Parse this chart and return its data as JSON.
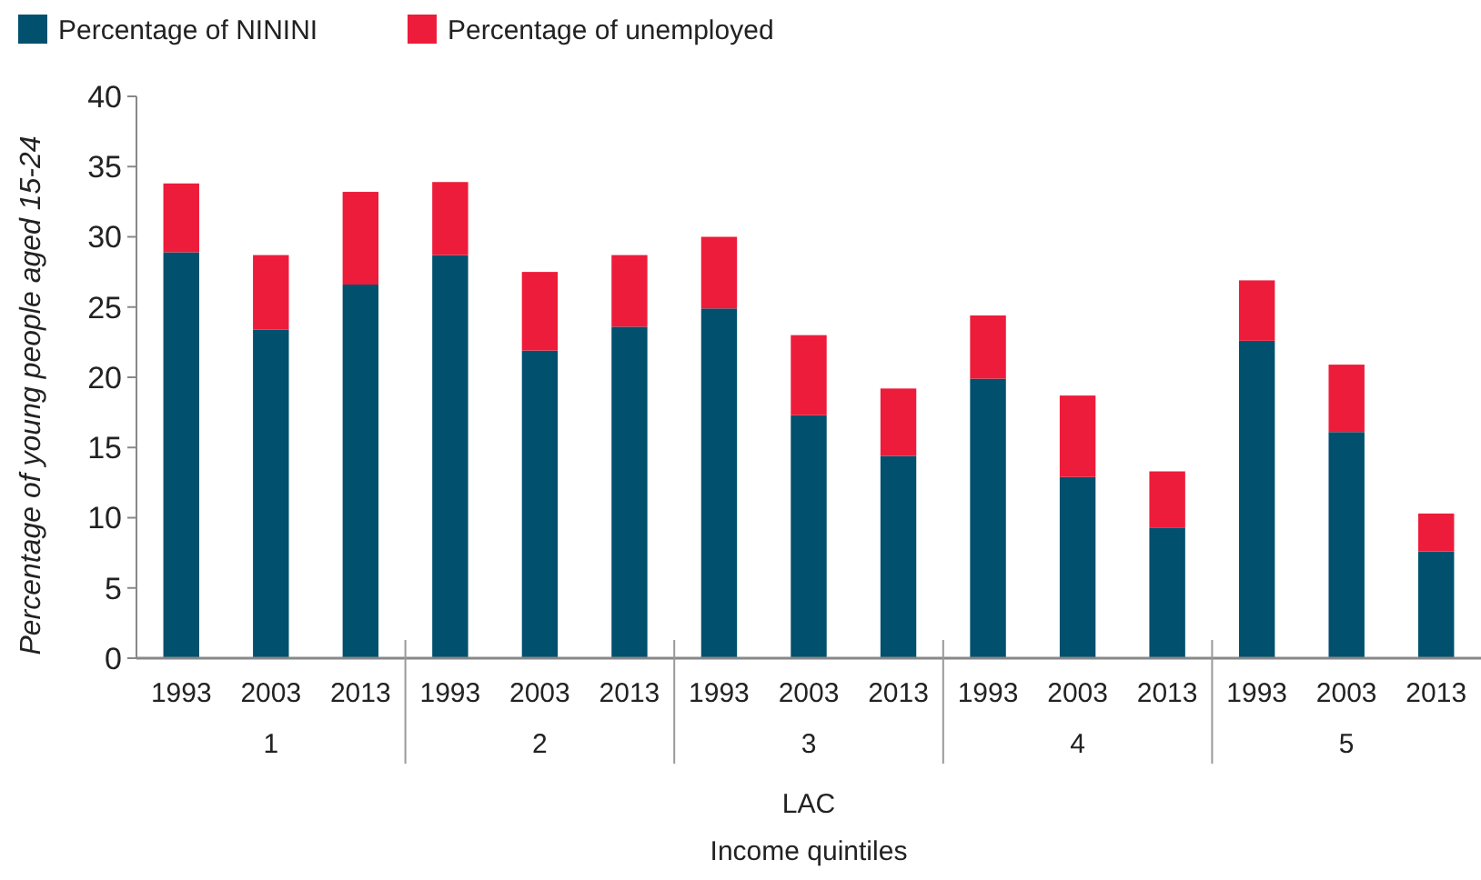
{
  "chart_data": {
    "type": "bar",
    "stacked": true,
    "ylabel": "Percentage of young  people aged 15-24",
    "xlabel": "Income quintiles",
    "categories": [
      "1993",
      "2003",
      "2013",
      "1993",
      "2003",
      "2013",
      "1993",
      "2003",
      "2013",
      "1993",
      "2003",
      "2013",
      "1993",
      "2003",
      "2013"
    ],
    "series": [
      {
        "name": "Percentage of NININI",
        "color": "#00506e",
        "values": [
          28.9,
          23.4,
          26.6,
          28.7,
          21.9,
          23.6,
          24.9,
          17.3,
          14.4,
          19.9,
          12.9,
          9.3,
          22.6,
          16.1,
          7.6
        ]
      },
      {
        "name": "Percentage of unemployed",
        "color": "#ed1c3a",
        "values": [
          4.9,
          5.3,
          6.6,
          5.2,
          5.6,
          5.1,
          5.1,
          5.7,
          4.8,
          4.5,
          5.8,
          4.0,
          4.3,
          4.8,
          2.7
        ]
      }
    ],
    "annotations": [
      "1",
      "2",
      "3",
      "4",
      "5",
      "LAC"
    ],
    "ylim": [
      0,
      40
    ],
    "yticks": [
      0,
      5,
      10,
      15,
      20,
      25,
      30,
      35,
      40
    ],
    "grid": false,
    "legend": "top left"
  }
}
